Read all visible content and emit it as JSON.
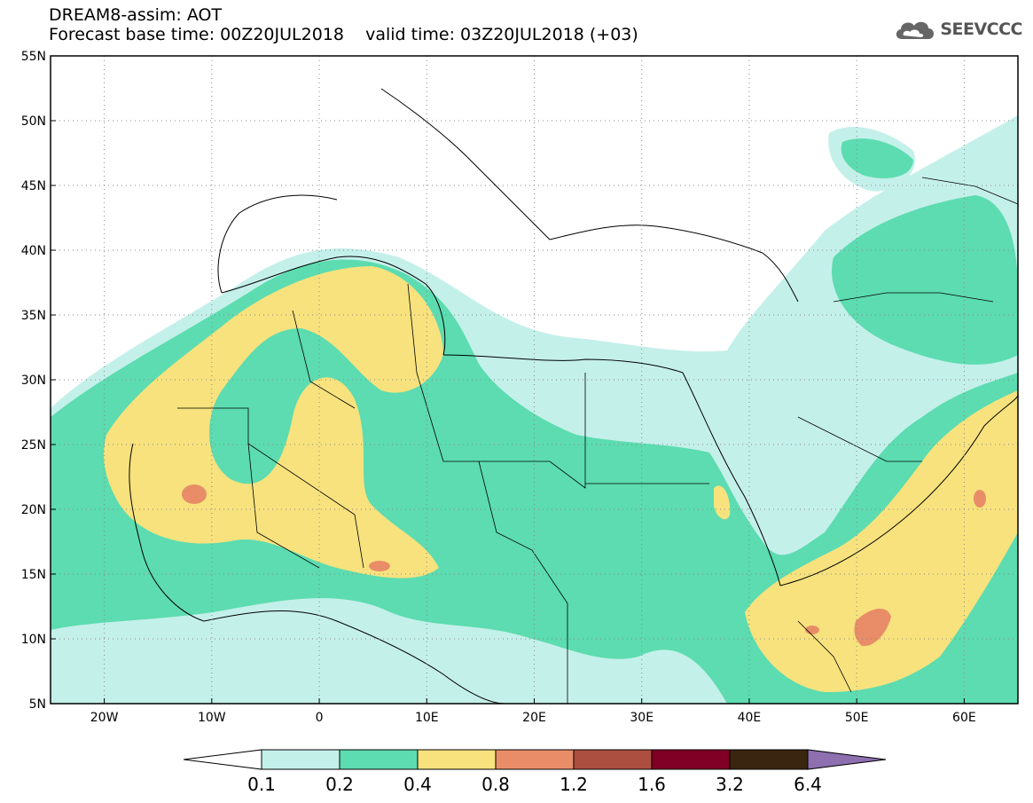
{
  "header": {
    "title": "DREAM8-assim: AOT",
    "subtitle": "Forecast base time: 00Z20JUL2018    valid time: 03Z20JUL2018 (+03)"
  },
  "logo": {
    "text": "SEEVCCC",
    "icon": "cloud-logo-icon"
  },
  "map": {
    "lon_range": [
      -25,
      65
    ],
    "lat_range": [
      5,
      55
    ],
    "lat_ticks": [
      "5N",
      "10N",
      "15N",
      "20N",
      "25N",
      "30N",
      "35N",
      "40N",
      "45N",
      "50N",
      "55N"
    ],
    "lon_ticks": [
      "20W",
      "10W",
      "0",
      "10E",
      "20E",
      "30E",
      "40E",
      "50E",
      "60E"
    ],
    "grid": "dotted"
  },
  "colorbar": {
    "labels": [
      "0.1",
      "0.2",
      "0.4",
      "0.8",
      "1.2",
      "1.6",
      "3.2",
      "6.4"
    ],
    "colors": [
      "#c4f0ea",
      "#5cdcb0",
      "#f7e27e",
      "#e88d68",
      "#ac4e40",
      "#800025",
      "#3a2510",
      "#8e6fb0"
    ]
  }
}
